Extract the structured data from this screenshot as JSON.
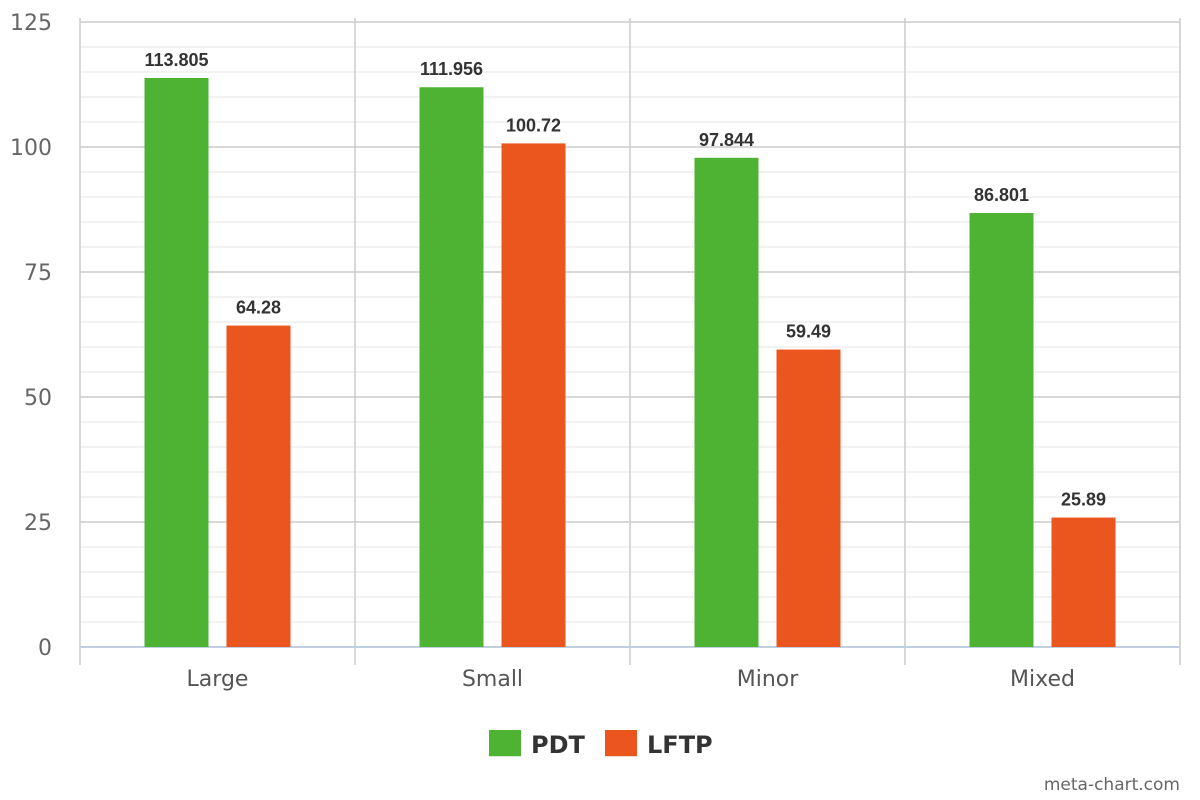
{
  "chart_data": {
    "type": "bar",
    "categories": [
      "Large",
      "Small",
      "Minor",
      "Mixed"
    ],
    "series": [
      {
        "name": "PDT",
        "values": [
          113.805,
          111.956,
          97.844,
          86.801
        ],
        "labels": [
          "113.805",
          "111.956",
          "97.844",
          "86.801"
        ],
        "color": "#4eb333"
      },
      {
        "name": "LFTP",
        "values": [
          64.28,
          100.72,
          59.49,
          25.89
        ],
        "labels": [
          "64.28",
          "100.72",
          "59.49",
          "25.89"
        ],
        "color": "#eb561f"
      }
    ],
    "ylim": [
      0,
      125
    ],
    "yticks": [
      "0",
      "25",
      "50",
      "75",
      "100",
      "125"
    ],
    "minor_grid_step": 5,
    "grid": true,
    "legend": "bottom-center",
    "title": "",
    "xlabel": "",
    "ylabel": ""
  },
  "credit": "meta-chart.com",
  "colors": {
    "major_grid": "#cccccc",
    "minor_grid": "#e6e6e6",
    "axis": "#c0d0e0",
    "category_divider": "#cccccc"
  }
}
